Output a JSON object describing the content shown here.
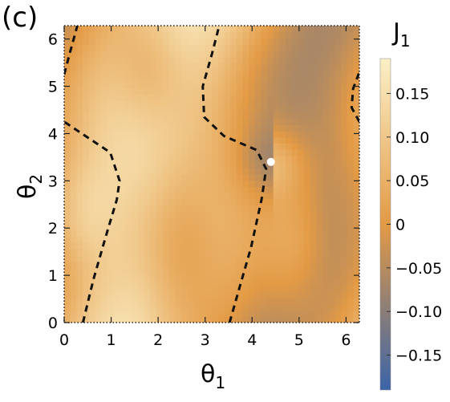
{
  "panel_label": "(c)",
  "chart_data": {
    "type": "heatmap",
    "x_range": [
      0,
      6.2832
    ],
    "y_range": [
      0,
      6.2832
    ],
    "x_ticks": [
      0,
      1,
      2,
      3,
      4,
      5,
      6
    ],
    "y_ticks": [
      0,
      1,
      2,
      3,
      4,
      5,
      6
    ],
    "x_tick_labels": [
      "0",
      "1",
      "2",
      "3",
      "4",
      "5",
      "6"
    ],
    "y_tick_labels": [
      "0",
      "1",
      "2",
      "3",
      "4",
      "5",
      "6"
    ],
    "xlabel": {
      "symbol": "θ",
      "sub": "1"
    },
    "ylabel": {
      "symbol": "θ",
      "sub": "2"
    },
    "colorbar": {
      "label": {
        "symbol": "J",
        "sub": "1"
      },
      "range": [
        -0.19,
        0.19
      ],
      "ticks": [
        0.15,
        0.1,
        0.05,
        0,
        -0.05,
        -0.1,
        -0.15
      ],
      "tick_labels": [
        "0.15",
        "0.10",
        "0.05",
        "0",
        "−0.05",
        "−0.10",
        "−0.15"
      ],
      "colors": {
        "low": "#3b64a8",
        "mid": "#e39a45",
        "high": "#fbf0c8"
      }
    },
    "singular_point": [
      4.4,
      3.4
    ],
    "zero_contours": [
      {
        "name": "left-bottom",
        "points": [
          [
            0.4,
            0.0
          ],
          [
            0.62,
            0.9
          ],
          [
            0.88,
            1.8
          ],
          [
            1.12,
            2.6
          ],
          [
            1.18,
            3.0
          ],
          [
            0.98,
            3.6
          ],
          [
            0.3,
            4.05
          ],
          [
            0.0,
            4.25
          ]
        ]
      },
      {
        "name": "left-top",
        "points": [
          [
            0.0,
            5.25
          ],
          [
            0.12,
            5.7
          ],
          [
            0.28,
            6.2832
          ]
        ]
      },
      {
        "name": "middle",
        "points": [
          [
            3.52,
            0.0
          ],
          [
            3.75,
            0.8
          ],
          [
            3.98,
            1.6
          ],
          [
            4.2,
            2.6
          ],
          [
            4.3,
            3.25
          ],
          [
            4.1,
            3.65
          ],
          [
            3.4,
            3.95
          ],
          [
            2.98,
            4.35
          ],
          [
            2.95,
            5.0
          ],
          [
            3.15,
            5.7
          ],
          [
            3.3,
            6.2832
          ]
        ]
      },
      {
        "name": "right-edge",
        "points": [
          [
            6.2832,
            4.25
          ],
          [
            6.12,
            4.55
          ],
          [
            6.15,
            4.95
          ],
          [
            6.2832,
            5.3
          ]
        ]
      }
    ]
  }
}
